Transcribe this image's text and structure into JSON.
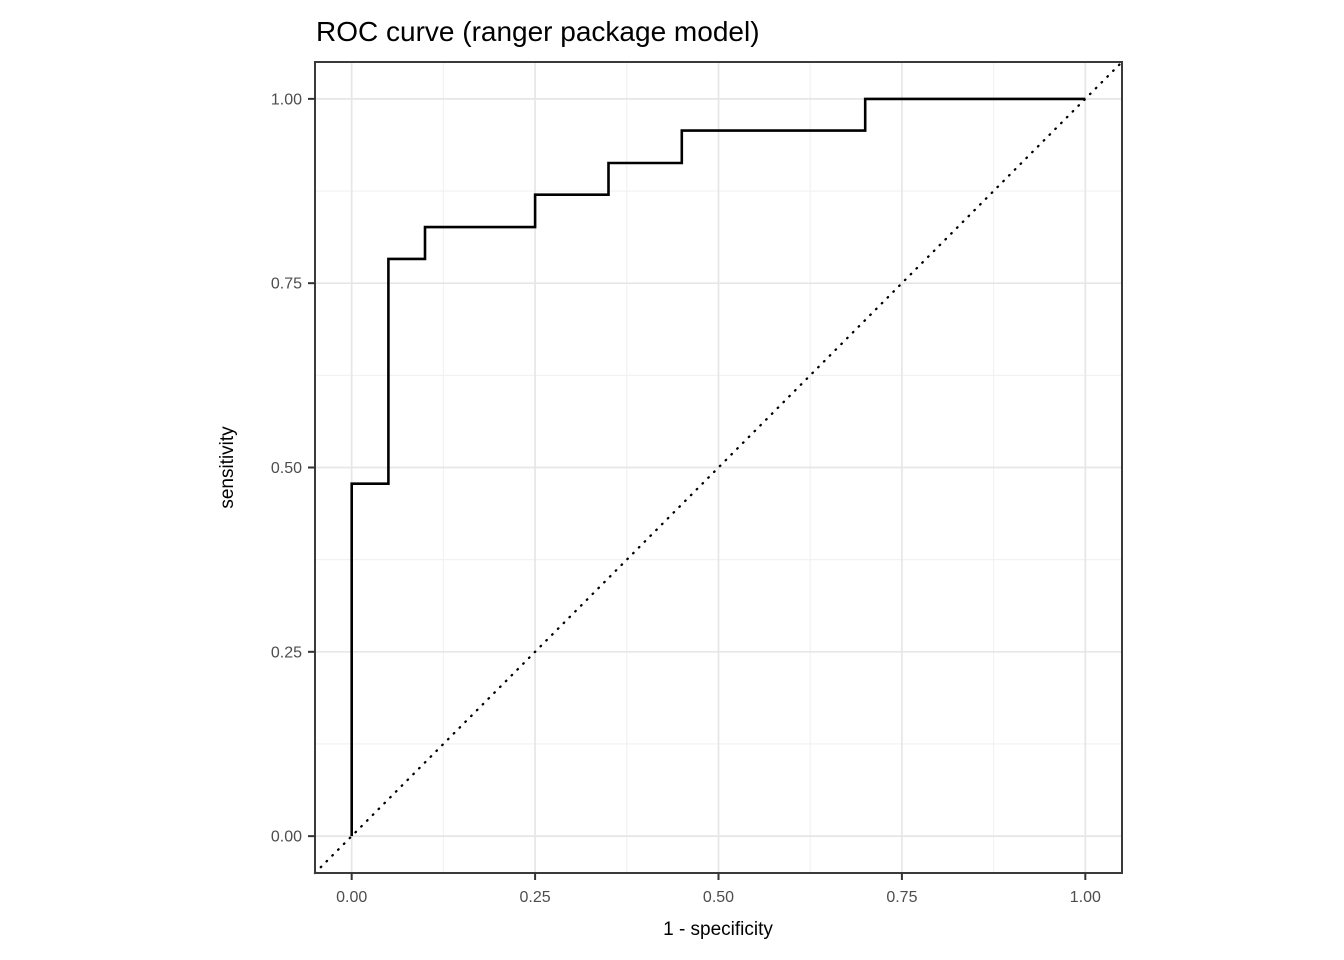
{
  "chart_data": {
    "type": "line",
    "title": "ROC curve (ranger package model)",
    "xlabel": "1 - specificity",
    "ylabel": "sensitivity",
    "xlim": [
      -0.05,
      1.05
    ],
    "ylim": [
      -0.05,
      1.05
    ],
    "x_ticks": [
      0.0,
      0.25,
      0.5,
      0.75,
      1.0
    ],
    "y_ticks": [
      0.0,
      0.25,
      0.5,
      0.75,
      1.0
    ],
    "x_tick_labels": [
      "0.00",
      "0.25",
      "0.50",
      "0.75",
      "1.00"
    ],
    "y_tick_labels": [
      "0.00",
      "0.25",
      "0.50",
      "0.75",
      "1.00"
    ],
    "x_minor_ticks": [
      0.125,
      0.375,
      0.625,
      0.875
    ],
    "y_minor_ticks": [
      0.125,
      0.375,
      0.625,
      0.875
    ],
    "grid": "on",
    "legend": "none",
    "series": [
      {
        "name": "roc-step-curve",
        "line_style": "solid",
        "draw": "step",
        "points": [
          [
            0.0,
            0.0
          ],
          [
            0.0,
            0.478
          ],
          [
            0.05,
            0.478
          ],
          [
            0.05,
            0.783
          ],
          [
            0.1,
            0.783
          ],
          [
            0.1,
            0.826
          ],
          [
            0.25,
            0.826
          ],
          [
            0.25,
            0.87
          ],
          [
            0.35,
            0.87
          ],
          [
            0.35,
            0.913
          ],
          [
            0.45,
            0.913
          ],
          [
            0.45,
            0.957
          ],
          [
            0.7,
            0.957
          ],
          [
            0.7,
            1.0
          ],
          [
            1.0,
            1.0
          ]
        ]
      },
      {
        "name": "chance-diagonal",
        "line_style": "dotted",
        "draw": "line",
        "points": [
          [
            -0.05,
            -0.05
          ],
          [
            1.05,
            1.05
          ]
        ]
      }
    ],
    "colors": {
      "curve": "#000000",
      "diagonal": "#000000",
      "grid_major": "#e6e6e6",
      "grid_minor": "#f1f1f1",
      "panel_border": "#3a3a3a",
      "tick_mark": "#333333",
      "tick_label": "#4d4d4d",
      "title": "#000000",
      "axis_title": "#000000",
      "panel_background": "#ffffff",
      "figure_background": "#ffffff"
    }
  }
}
